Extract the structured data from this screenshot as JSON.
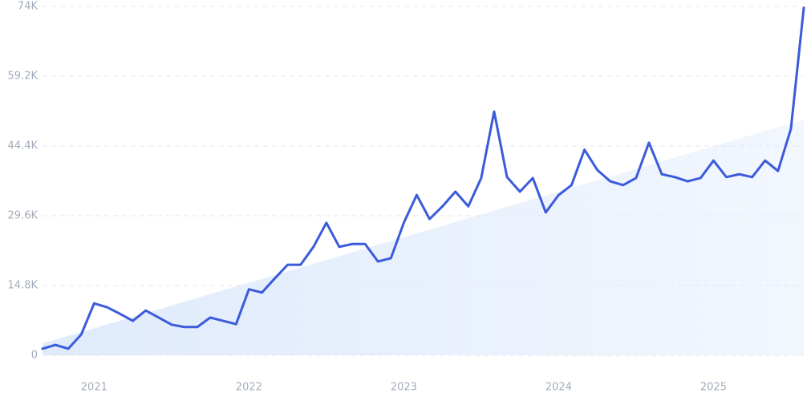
{
  "chart_data": {
    "type": "line",
    "categories": [
      null,
      null,
      null,
      null,
      "2021",
      null,
      null,
      null,
      null,
      null,
      null,
      null,
      null,
      null,
      null,
      null,
      "2022",
      null,
      null,
      null,
      null,
      null,
      null,
      null,
      null,
      null,
      null,
      null,
      "2023",
      null,
      null,
      null,
      null,
      null,
      null,
      null,
      null,
      null,
      null,
      null,
      "2024",
      null,
      null,
      null,
      null,
      null,
      null,
      null,
      null,
      null,
      null,
      null,
      "2025",
      null,
      null,
      null,
      null,
      null,
      null,
      null
    ],
    "series": [
      {
        "color": "#3b5bdb",
        "values": [
          1400,
          2200,
          1400,
          4400,
          11000,
          10200,
          8800,
          7300,
          9500,
          8000,
          6500,
          6000,
          6000,
          8000,
          7300,
          6600,
          14000,
          13300,
          16300,
          19200,
          19200,
          23000,
          28100,
          23000,
          23600,
          23600,
          19900,
          20600,
          28100,
          34000,
          28900,
          31600,
          34700,
          31600,
          37600,
          51700,
          37800,
          34700,
          37600,
          30300,
          34000,
          36100,
          43600,
          39300,
          36900,
          36100,
          37600,
          45100,
          38400,
          37800,
          36900,
          37600,
          41300,
          37800,
          38400,
          37800,
          41300,
          39100,
          48000,
          73700
        ]
      }
    ],
    "trend": {
      "color": "#dbe8fb",
      "values": [
        2500,
        50000
      ]
    },
    "ylim": [
      0,
      74000
    ],
    "yticks": [
      0,
      {
        "value": 14800,
        "label": "14.8K"
      },
      {
        "value": 29600,
        "label": "29.6K"
      },
      {
        "value": 44400,
        "label": "44.4K"
      },
      {
        "value": 59200,
        "label": "59.2K"
      },
      {
        "value": 74000,
        "label": "74K"
      }
    ],
    "grid": true
  }
}
